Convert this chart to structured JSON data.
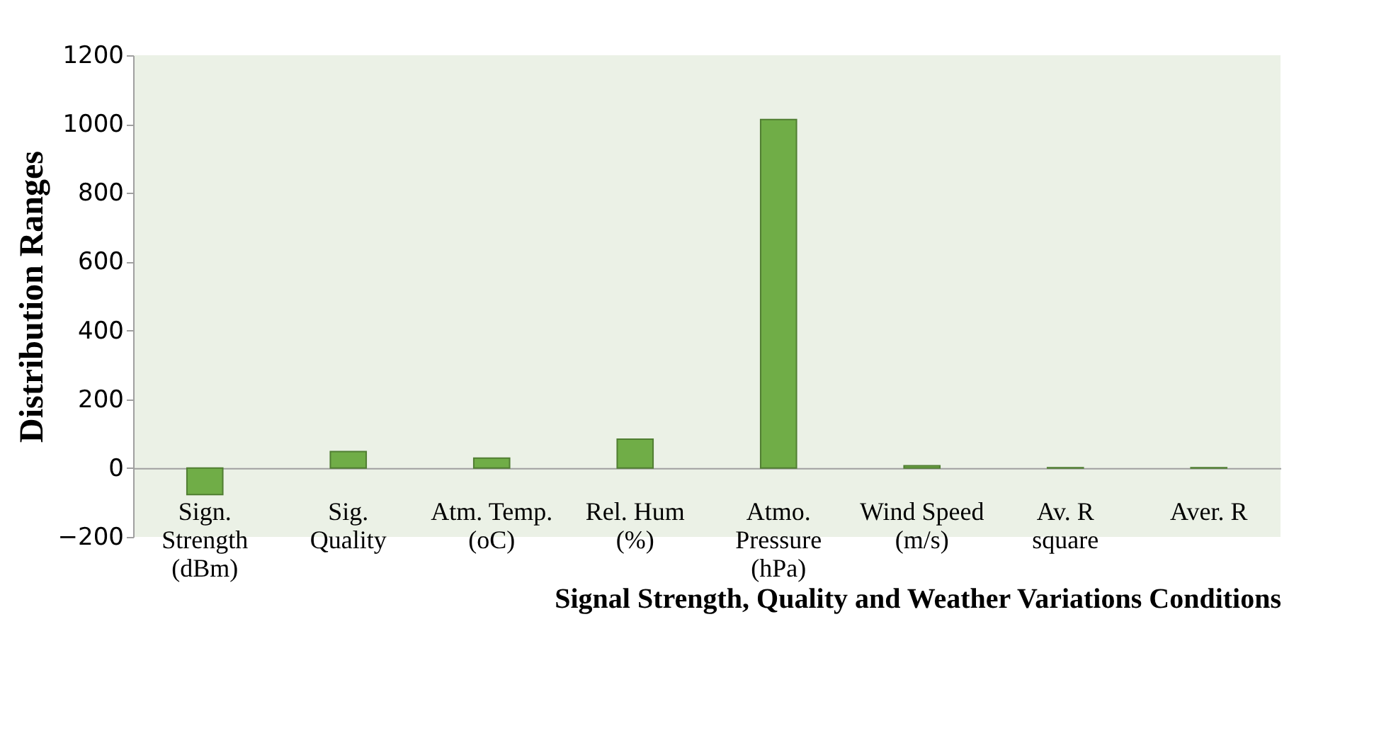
{
  "chart_data": {
    "type": "bar",
    "xlabel": "Signal Strength, Quality and Weather Variations Conditions",
    "ylabel": "Distribution Ranges",
    "categories": [
      "Sign. Strength (dBm)",
      "Sig. Quality",
      "Atm. Temp. (oC)",
      "Rel. Hum (%)",
      "Atmo. Pressure (hPa)",
      "Wind Speed (m/s)",
      "Av. R square",
      "Aver. R"
    ],
    "values": [
      -77,
      48,
      29,
      84,
      1013,
      7,
      1,
      1
    ],
    "color": "#70ad47",
    "ylim": [
      -200,
      1200
    ],
    "yticks": [
      -200,
      0,
      200,
      400,
      600,
      800,
      1000,
      1200
    ]
  }
}
